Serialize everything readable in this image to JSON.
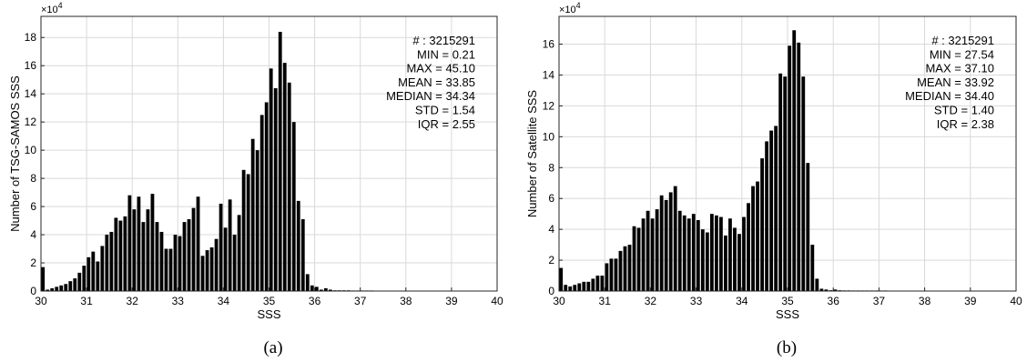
{
  "chart_data": [
    {
      "type": "bar",
      "xlabel": "SSS",
      "ylabel": "Number of TSG-SAMOS SSS",
      "y_multiplier": "×10",
      "y_exponent": "4",
      "xlim": [
        30,
        40
      ],
      "ylim": [
        0,
        19.5
      ],
      "xticks": [
        "30",
        "31",
        "32",
        "33",
        "34",
        "35",
        "36",
        "37",
        "38",
        "39",
        "40"
      ],
      "yticks": [
        "0",
        "2",
        "4",
        "6",
        "8",
        "10",
        "12",
        "14",
        "16",
        "18"
      ],
      "grid": true,
      "caption": "(a)",
      "stats": [
        "# : 3215291",
        "MIN = 0.21",
        "MAX =  45.10",
        "MEAN = 33.85",
        "MEDIAN = 34.34",
        "STD = 1.54",
        "IQR = 2.55"
      ],
      "bin_width": 0.1,
      "x": [
        30.0,
        30.1,
        30.2,
        30.3,
        30.4,
        30.5,
        30.6,
        30.7,
        30.8,
        30.9,
        31.0,
        31.1,
        31.2,
        31.3,
        31.4,
        31.5,
        31.6,
        31.7,
        31.8,
        31.9,
        32.0,
        32.1,
        32.2,
        32.3,
        32.4,
        32.5,
        32.6,
        32.7,
        32.8,
        32.9,
        33.0,
        33.1,
        33.2,
        33.3,
        33.4,
        33.5,
        33.6,
        33.7,
        33.8,
        33.9,
        34.0,
        34.1,
        34.2,
        34.3,
        34.4,
        34.5,
        34.6,
        34.7,
        34.8,
        34.9,
        35.0,
        35.1,
        35.2,
        35.3,
        35.4,
        35.5,
        35.6,
        35.7,
        35.8,
        35.9,
        36.0,
        36.1,
        36.2,
        36.3,
        36.4,
        36.5,
        36.6,
        36.7,
        36.8,
        36.9,
        37.0,
        37.1,
        37.2
      ],
      "values": [
        1.7,
        0.1,
        0.2,
        0.3,
        0.4,
        0.5,
        0.7,
        0.9,
        1.3,
        1.8,
        2.4,
        2.8,
        2.1,
        3.2,
        4.0,
        4.2,
        5.2,
        5.0,
        5.3,
        6.8,
        5.8,
        6.7,
        4.9,
        5.8,
        6.9,
        4.9,
        4.2,
        3.0,
        3.0,
        4.0,
        3.9,
        4.9,
        5.1,
        5.9,
        6.7,
        2.5,
        2.9,
        3.1,
        3.7,
        6.2,
        4.5,
        6.5,
        4.0,
        5.4,
        8.6,
        8.3,
        10.8,
        10.0,
        12.5,
        13.4,
        15.8,
        14.4,
        18.4,
        16.2,
        14.8,
        12.0,
        6.4,
        5.1,
        1.2,
        0.4,
        0.3,
        0.1,
        0.2,
        0.1,
        0.05,
        0.05,
        0.05,
        0.05,
        0.03,
        0.03,
        0.03,
        0.02,
        0.02
      ]
    },
    {
      "type": "bar",
      "xlabel": "SSS",
      "ylabel": "Number of Satellite SSS",
      "y_multiplier": "×10",
      "y_exponent": "4",
      "xlim": [
        30,
        40
      ],
      "ylim": [
        0,
        17.8
      ],
      "xticks": [
        "30",
        "31",
        "32",
        "33",
        "34",
        "35",
        "36",
        "37",
        "38",
        "39",
        "40"
      ],
      "yticks": [
        "0",
        "2",
        "4",
        "6",
        "8",
        "10",
        "12",
        "14",
        "16"
      ],
      "grid": true,
      "caption": "(b)",
      "stats": [
        "# : 3215291",
        "MIN = 27.54",
        "MAX =  37.10",
        "MEAN = 33.92",
        "MEDIAN = 34.40",
        "STD = 1.40",
        "IQR = 2.38"
      ],
      "bin_width": 0.1,
      "x": [
        30.0,
        30.1,
        30.2,
        30.3,
        30.4,
        30.5,
        30.6,
        30.7,
        30.8,
        30.9,
        31.0,
        31.1,
        31.2,
        31.3,
        31.4,
        31.5,
        31.6,
        31.7,
        31.8,
        31.9,
        32.0,
        32.1,
        32.2,
        32.3,
        32.4,
        32.5,
        32.6,
        32.7,
        32.8,
        32.9,
        33.0,
        33.1,
        33.2,
        33.3,
        33.4,
        33.5,
        33.6,
        33.7,
        33.8,
        33.9,
        34.0,
        34.1,
        34.2,
        34.3,
        34.4,
        34.5,
        34.6,
        34.7,
        34.8,
        34.9,
        35.0,
        35.1,
        35.2,
        35.3,
        35.4,
        35.5,
        35.6,
        35.7,
        35.8,
        35.9,
        36.0,
        36.1,
        36.2,
        36.3,
        36.4,
        36.5,
        36.6,
        36.7,
        36.8,
        36.9,
        37.0,
        37.1
      ],
      "values": [
        1.5,
        0.4,
        0.3,
        0.4,
        0.5,
        0.6,
        0.6,
        0.8,
        1.0,
        1.0,
        1.8,
        2.1,
        2.1,
        2.6,
        2.9,
        3.0,
        4.2,
        4.1,
        4.7,
        5.2,
        4.7,
        5.3,
        6.2,
        5.9,
        6.4,
        6.8,
        5.2,
        4.9,
        4.7,
        5.0,
        4.6,
        4.0,
        3.8,
        5.0,
        4.9,
        4.8,
        3.6,
        4.7,
        4.1,
        3.7,
        4.8,
        5.7,
        6.8,
        7.1,
        8.6,
        9.7,
        10.4,
        10.7,
        14.1,
        13.9,
        15.9,
        16.9,
        16.1,
        13.9,
        8.3,
        3.0,
        0.8,
        0.15,
        0.1,
        0.05,
        0.1,
        0.05,
        0.04,
        0.04,
        0.03,
        0.03,
        0.03,
        0.02,
        0.02,
        0.02,
        0.02,
        0.02
      ]
    }
  ]
}
